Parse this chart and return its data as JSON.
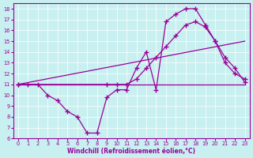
{
  "xlabel": "Windchill (Refroidissement éolien,°C)",
  "bg_color": "#c8f0f0",
  "line_color": "#990099",
  "xlim": [
    -0.5,
    23.5
  ],
  "ylim": [
    6,
    18.5
  ],
  "xticks": [
    0,
    1,
    2,
    3,
    4,
    5,
    6,
    7,
    8,
    9,
    10,
    11,
    12,
    13,
    14,
    15,
    16,
    17,
    18,
    19,
    20,
    21,
    22,
    23
  ],
  "yticks": [
    6,
    7,
    8,
    9,
    10,
    11,
    12,
    13,
    14,
    15,
    16,
    17,
    18
  ],
  "line1_x": [
    0,
    1,
    2,
    3,
    4,
    5,
    6,
    7,
    8,
    9,
    10,
    11,
    12,
    13,
    14,
    15,
    16,
    17,
    18,
    19,
    20,
    21,
    22,
    23
  ],
  "line1_y": [
    11,
    11,
    11,
    10,
    9.5,
    8.5,
    8,
    6.5,
    6.5,
    9.8,
    10.5,
    10.5,
    12.5,
    14.0,
    10.5,
    16.8,
    17.5,
    18,
    18,
    16.5,
    15,
    13,
    12,
    11.5
  ],
  "line2_x": [
    0,
    9,
    10,
    11,
    12,
    13,
    14,
    15,
    16,
    17,
    18,
    19,
    20,
    21,
    22,
    23
  ],
  "line2_y": [
    11,
    11,
    11,
    11,
    11.5,
    12.5,
    13.5,
    14.5,
    15.5,
    16.5,
    16.8,
    16.3,
    15,
    13.5,
    12.5,
    11.2
  ],
  "line3_x": [
    0,
    23
  ],
  "line3_y": [
    11,
    15.0
  ],
  "line4_x": [
    0,
    5,
    10,
    15,
    20,
    23
  ],
  "line4_y": [
    11,
    11,
    11,
    11,
    11,
    11
  ]
}
